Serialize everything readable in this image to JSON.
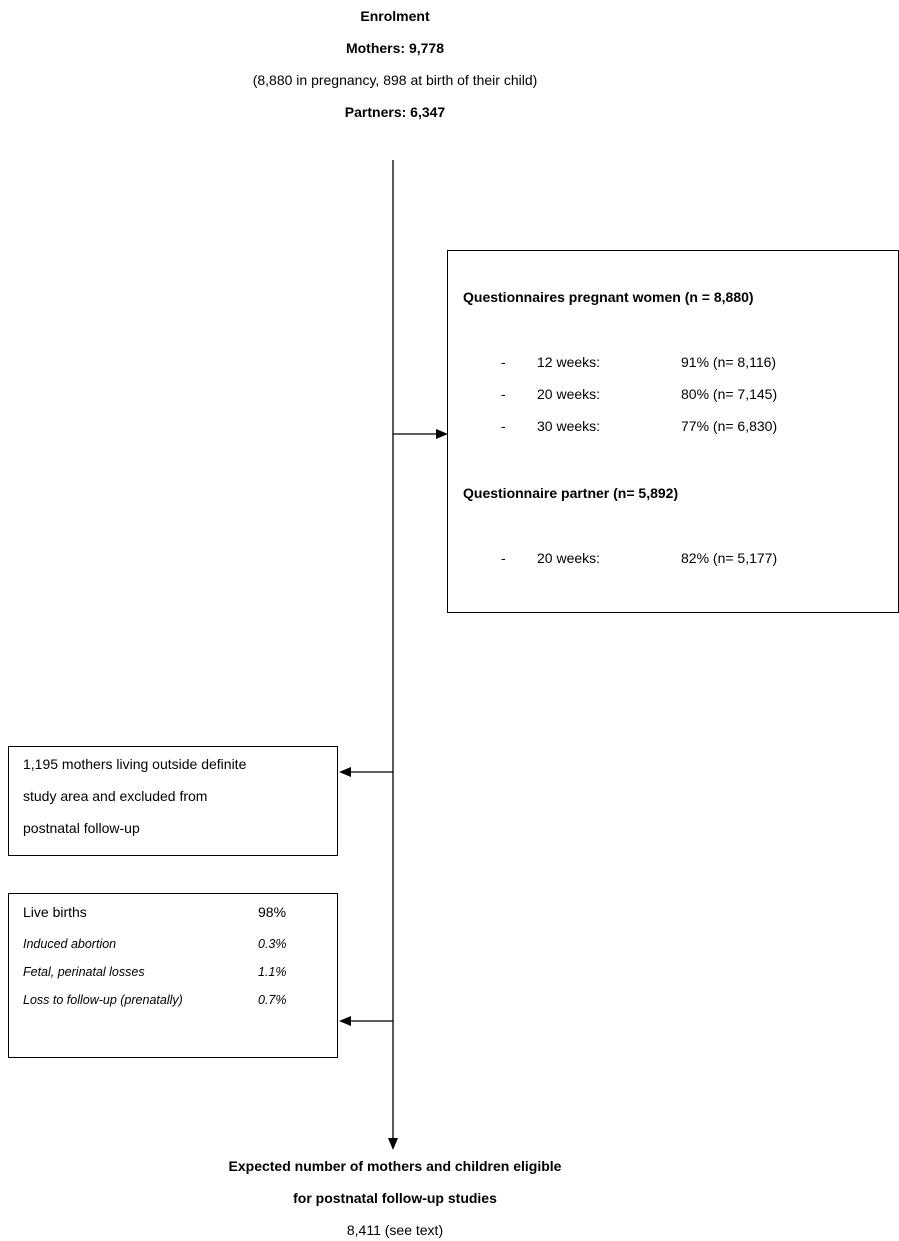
{
  "enrolment": {
    "title": "Enrolment",
    "mothers": "Mothers: 9,778",
    "detail": "(8,880 in pregnancy, 898 at birth of their child)",
    "partners": "Partners: 6,347"
  },
  "questionnaires": {
    "pregnant_heading": "Questionnaires pregnant women (n = 8,880)",
    "pregnant_items": [
      {
        "bullet": "-",
        "label": "12 weeks:",
        "value": "91% (n= 8,116)"
      },
      {
        "bullet": "-",
        "label": "20 weeks:",
        "value": "80% (n= 7,145)"
      },
      {
        "bullet": "-",
        "label": "30 weeks:",
        "value": "77% (n= 6,830)"
      }
    ],
    "partner_heading": "Questionnaire partner (n= 5,892)",
    "partner_items": [
      {
        "bullet": "-",
        "label": "20 weeks:",
        "value": "82% (n= 5,177)"
      }
    ]
  },
  "excluded": {
    "lines": [
      "1,195 mothers living outside definite",
      "study area and excluded from",
      "postnatal follow-up"
    ]
  },
  "outcomes": [
    {
      "label": "Live births",
      "value": "98%"
    },
    {
      "label": "Induced abortion",
      "value": "0.3%"
    },
    {
      "label": "Fetal, perinatal losses",
      "value": "1.1%"
    },
    {
      "label": "Loss to follow-up (prenatally)",
      "value": "0.7%"
    }
  ],
  "expected": {
    "line1": "Expected number of mothers and children eligible",
    "line2": "for postnatal follow-up studies",
    "line3": "8,411 (see text)"
  }
}
